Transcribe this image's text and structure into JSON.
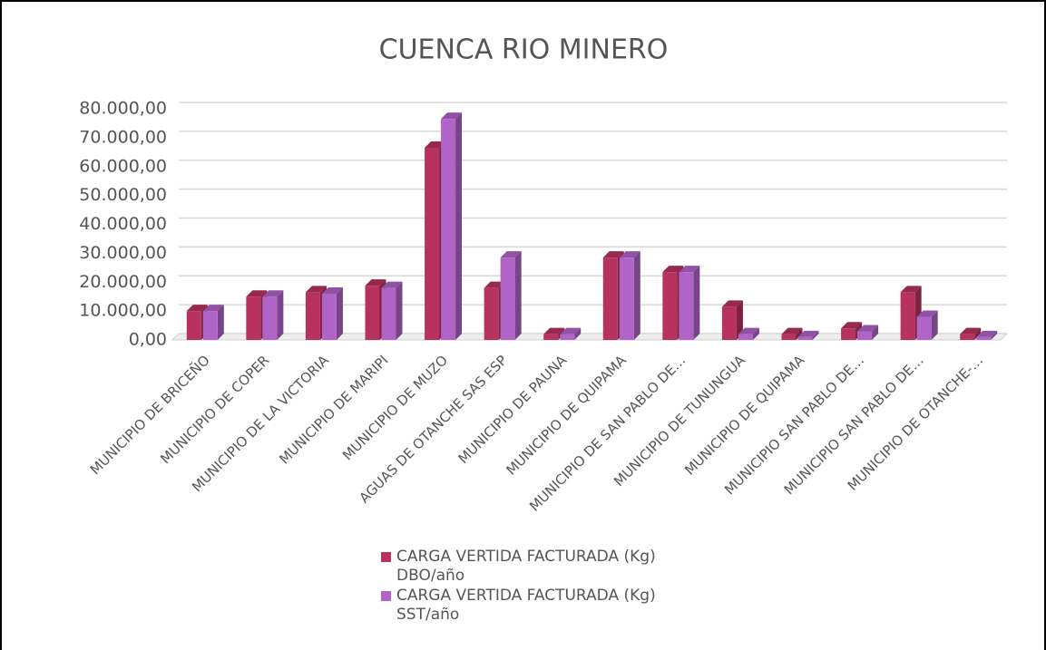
{
  "chart_data": {
    "type": "bar3d",
    "title": "CUENCA RIO MINERO",
    "categories": [
      "MUNICIPIO DE BRICEÑO",
      "MUNICIPIO DE COPER",
      "MUNICIPIO DE LA VICTORIA",
      "MUNICIPIO DE MARIPI",
      "MUNICIPIO DE MUZO",
      "AGUAS DE OTANCHE SAS ESP",
      "MUNICIPIO DE PAUNA",
      "MUNICIPIO DE QUIPAMA",
      "MUNICIPIO DE SAN PABLO DE…",
      "MUNICIPIO DE TUNUNGUA",
      "MUNICIPIO DE QUIPAMA",
      "MUNICIPIO SAN PABLO DE…",
      "MUNICIPIO SAN PABLO DE…",
      "MUNICIPIO DE OTANCHE-…"
    ],
    "series": [
      {
        "name": "CARGA VERTIDA FACTURADA (Kg) DBO/año",
        "color": "#b8325f",
        "values": [
          10000,
          15000,
          16500,
          18800,
          66500,
          18000,
          2000,
          28500,
          23500,
          11500,
          2000,
          4000,
          16500,
          2000
        ]
      },
      {
        "name": "CARGA VERTIDA FACTURADA (Kg) SST/año",
        "color": "#b064c8",
        "values": [
          10000,
          15000,
          16000,
          18000,
          76500,
          28500,
          2000,
          28500,
          23500,
          2000,
          1000,
          3000,
          8000,
          1000
        ]
      }
    ],
    "ylim": [
      0,
      80000
    ],
    "yticks": [
      {
        "value": 0,
        "label": "0,00"
      },
      {
        "value": 10000,
        "label": "10.000,00"
      },
      {
        "value": 20000,
        "label": "20.000,00"
      },
      {
        "value": 30000,
        "label": "30.000,00"
      },
      {
        "value": 40000,
        "label": "40.000,00"
      },
      {
        "value": 50000,
        "label": "50.000,00"
      },
      {
        "value": 60000,
        "label": "60.000,00"
      },
      {
        "value": 70000,
        "label": "70.000,00"
      },
      {
        "value": 80000,
        "label": "80.000,00"
      }
    ],
    "grid": true
  }
}
